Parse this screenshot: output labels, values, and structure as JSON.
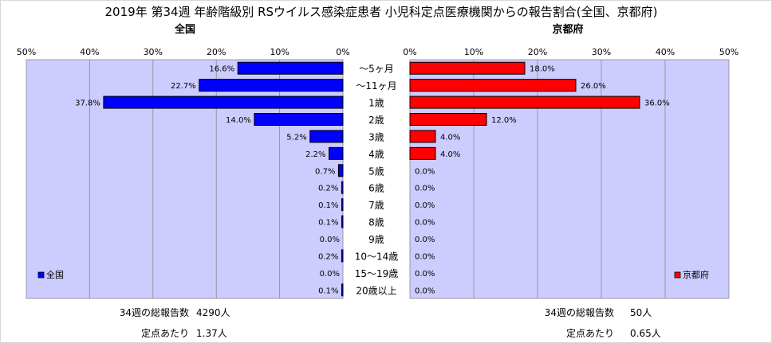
{
  "title": "2019年 第34週 年齢階級別 RSウイルス感染症患者 小児科定点医療機関からの報告割合(全国、京都府)",
  "panels": {
    "national": {
      "title": "全国",
      "legend": "全国",
      "color": "#0000ff"
    },
    "kyoto": {
      "title": "京都府",
      "legend": "京都府",
      "color": "#ff0000"
    }
  },
  "axis_ticks": [
    "50%",
    "40%",
    "30%",
    "20%",
    "10%",
    "0%"
  ],
  "axis_ticks_right": [
    "0%",
    "10%",
    "20%",
    "30%",
    "40%",
    "50%"
  ],
  "chart_data": {
    "type": "bar",
    "orientation": "horizontal",
    "categories": [
      "～5ヶ月",
      "～11ヶ月",
      "1歳",
      "2歳",
      "3歳",
      "4歳",
      "5歳",
      "6歳",
      "7歳",
      "8歳",
      "9歳",
      "10～14歳",
      "15～19歳",
      "20歳以上"
    ],
    "series": [
      {
        "name": "全国",
        "values": [
          16.6,
          22.7,
          37.8,
          14.0,
          5.2,
          2.2,
          0.7,
          0.2,
          0.1,
          0.1,
          0.0,
          0.2,
          0.0,
          0.1
        ],
        "labels": [
          "16.6%",
          "22.7%",
          "37.8%",
          "14.0%",
          "5.2%",
          "2.2%",
          "0.7%",
          "0.2%",
          "0.1%",
          "0.1%",
          "0.0%",
          "0.2%",
          "0.0%",
          "0.1%"
        ]
      },
      {
        "name": "京都府",
        "values": [
          18.0,
          26.0,
          36.0,
          12.0,
          4.0,
          4.0,
          0.0,
          0.0,
          0.0,
          0.0,
          0.0,
          0.0,
          0.0,
          0.0
        ],
        "labels": [
          "18.0%",
          "26.0%",
          "36.0%",
          "12.0%",
          "4.0%",
          "4.0%",
          "0.0%",
          "0.0%",
          "0.0%",
          "0.0%",
          "0.0%",
          "0.0%",
          "0.0%",
          "0.0%"
        ]
      }
    ],
    "xlim": [
      0,
      50
    ],
    "grid": true,
    "legend_position": "bottom-left / bottom-right"
  },
  "footer": {
    "national": {
      "total_label": "34週の総報告数",
      "total_value": "4290人",
      "per_label": "定点あたり",
      "per_value": "1.37人"
    },
    "kyoto": {
      "total_label": "34週の総報告数",
      "total_value": "50人",
      "per_label": "定点あたり",
      "per_value": "0.65人"
    }
  }
}
